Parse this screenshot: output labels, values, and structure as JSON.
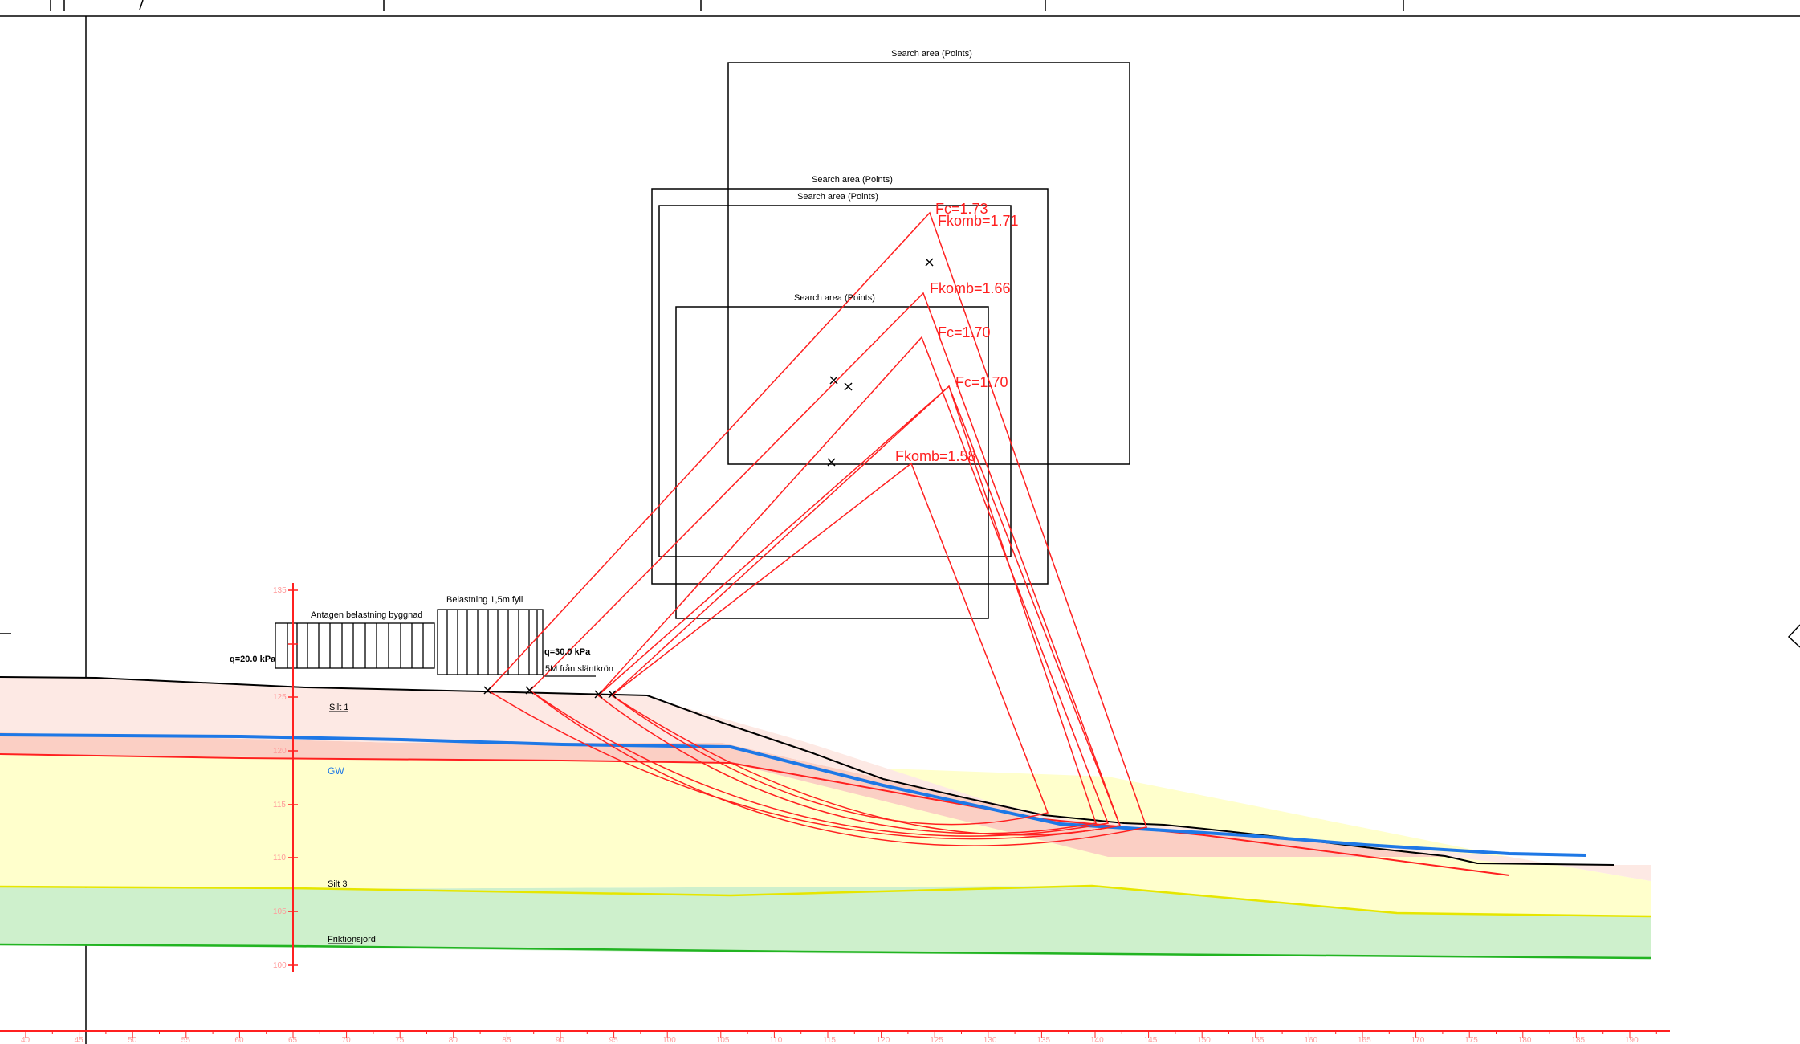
{
  "colors": {
    "ground_line": "#000000",
    "surface_layer": "#fde9e4",
    "silt1_layer": "#fbcfc4",
    "silt3_layer": "#ffffcc",
    "friction_layer": "#cef0cc",
    "silt3_boundary": "#e6e600",
    "friction_boundary": "#22b422",
    "groundwater": "#1e78e6",
    "slip_surface": "#ff2020",
    "scale_ruler": "#ff2020",
    "scale_label": "#ff9a9a"
  },
  "search_areas": [
    {
      "label": "Search area (Points)"
    },
    {
      "label": "Search area (Points)"
    },
    {
      "label": "Search area (Points)"
    },
    {
      "label": "Search area (Points)"
    }
  ],
  "safety_factors": [
    {
      "label": "Fc=1.73"
    },
    {
      "label": "Fkomb=1.71"
    },
    {
      "label": "Fkomb=1.66"
    },
    {
      "label": "Fc=1.70"
    },
    {
      "label": "Fc=1.70"
    },
    {
      "label": "Fkomb=1.58"
    }
  ],
  "loads": {
    "building_title": "Antagen belastning byggnad",
    "building_q": "q=20.0 kPa",
    "fill_title": "Belastning 1,5m fyll",
    "fill_q": "q=30.0 kPa",
    "fill_offset": "5M från släntkrön"
  },
  "soil_labels": {
    "silt1": "Silt 1",
    "groundwater": "GW",
    "silt3": "Silt 3",
    "friction": "Friktionsjord"
  },
  "elevation_scale": [
    "135",
    "125",
    "120",
    "115",
    "110",
    "105",
    "100"
  ],
  "distance_scale": [
    "40",
    "45",
    "50",
    "55",
    "60",
    "65",
    "70",
    "75",
    "80",
    "85",
    "90",
    "95",
    "100",
    "105",
    "110",
    "115",
    "120",
    "125",
    "130",
    "135",
    "140",
    "145",
    "150",
    "155",
    "160",
    "165",
    "170",
    "175",
    "180",
    "185",
    "190"
  ]
}
